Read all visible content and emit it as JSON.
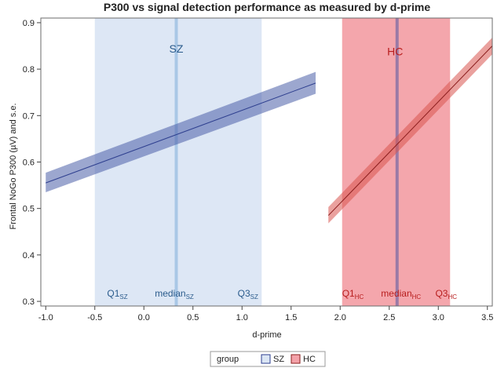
{
  "chart_data": {
    "type": "line",
    "title": "P300 vs signal detection performance as measured by d-prime",
    "xlabel": "d-prime",
    "ylabel": "Frontal NoGo P300 (µV) and s.e.",
    "xlim": [
      -1.05,
      3.55
    ],
    "ylim": [
      0.29,
      0.91
    ],
    "xticks": [
      -1.0,
      -0.5,
      0.0,
      0.5,
      1.0,
      1.5,
      2.0,
      2.5,
      3.0,
      3.5
    ],
    "xtick_labels": [
      "-1.0",
      "-0.5",
      "0.0",
      "0.5",
      "1.0",
      "1.5",
      "2.0",
      "2.5",
      "3.0",
      "3.5"
    ],
    "yticks": [
      0.3,
      0.4,
      0.5,
      0.6,
      0.7,
      0.8,
      0.9
    ],
    "ytick_labels": [
      "0.3",
      "0.4",
      "0.5",
      "0.6",
      "0.7",
      "0.8",
      "0.9"
    ],
    "grid": false,
    "series": [
      {
        "name": "SZ",
        "color": "#2e3f8f",
        "band_color": "#4a5fa8",
        "region_color": "#dbe6f4",
        "median_color": "#a9c7e6",
        "label_color": "#2a5b8c",
        "x": [
          -1.0,
          1.75
        ],
        "fit": [
          0.555,
          0.77
        ],
        "lower": [
          0.535,
          0.747
        ],
        "upper": [
          0.577,
          0.794
        ],
        "q1": -0.5,
        "median": 0.33,
        "q3": 1.2,
        "region_label": "SZ"
      },
      {
        "name": "HC",
        "color": "#8b1e1e",
        "band_color": "#d9534f",
        "region_color": "#f3a1a8",
        "median_color": "#9a7aa6",
        "label_color": "#b81e1e",
        "x": [
          1.88,
          3.55
        ],
        "fit": [
          0.485,
          0.85
        ],
        "lower": [
          0.468,
          0.832
        ],
        "upper": [
          0.503,
          0.868
        ],
        "q1": 2.02,
        "median": 2.58,
        "q3": 3.12,
        "region_label": "HC"
      }
    ],
    "quantile_labels": {
      "SZ": [
        {
          "base": "Q1",
          "sub": "SZ",
          "x": -0.27
        },
        {
          "base": "median",
          "sub": "SZ",
          "x": 0.31
        },
        {
          "base": "Q3",
          "sub": "SZ",
          "x": 1.06
        }
      ],
      "HC": [
        {
          "base": "Q1",
          "sub": "HC",
          "x": 2.13
        },
        {
          "base": "median",
          "sub": "HC",
          "x": 2.62
        },
        {
          "base": "Q3",
          "sub": "HC",
          "x": 3.08
        }
      ]
    },
    "legend": {
      "title": "group",
      "placement": "bottom",
      "entries": [
        "SZ",
        "HC"
      ]
    }
  }
}
